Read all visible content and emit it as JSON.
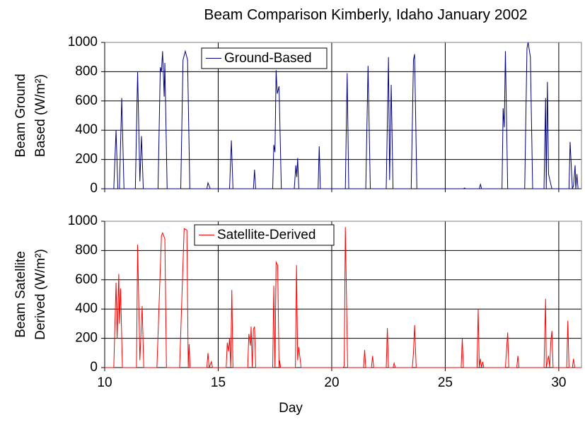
{
  "chart_data": [
    {
      "type": "line",
      "title": "Beam Comparison Kimberly, Idaho January 2002",
      "ylabel": [
        "Beam  Ground",
        "Based (W/m²)"
      ],
      "xlim": [
        10,
        31
      ],
      "xticks": [
        10,
        15,
        20,
        25,
        30
      ],
      "ylim": [
        0,
        1000
      ],
      "yticks": [
        0,
        200,
        400,
        600,
        800,
        1000
      ],
      "grid": true,
      "series": [
        {
          "name": "Ground-Based",
          "color": "#000080",
          "x": [
            10.0,
            10.4,
            10.5,
            10.58,
            10.65,
            10.75,
            10.85,
            11.35,
            11.45,
            11.55,
            11.62,
            11.7,
            12.35,
            12.45,
            12.5,
            12.55,
            12.62,
            12.65,
            12.75,
            13.35,
            13.45,
            13.55,
            13.65,
            13.75,
            14.5,
            14.55,
            14.65,
            15.5,
            15.58,
            15.65,
            16.55,
            16.6,
            16.65,
            17.4,
            17.45,
            17.5,
            17.55,
            17.6,
            17.68,
            17.78,
            18.35,
            18.42,
            18.46,
            18.5,
            18.55,
            19.4,
            19.45,
            19.5,
            20.6,
            20.68,
            20.75,
            21.5,
            21.6,
            21.7,
            22.4,
            22.5,
            22.55,
            22.62,
            22.7,
            23.5,
            23.6,
            23.65,
            23.75,
            25.8,
            25.85,
            25.9,
            26.5,
            26.55,
            26.6,
            27.5,
            27.55,
            27.6,
            27.65,
            27.75,
            28.5,
            28.6,
            28.65,
            28.75,
            28.85,
            29.35,
            29.42,
            29.45,
            29.5,
            29.55,
            29.65,
            29.7,
            30.45,
            30.5,
            30.6,
            30.65,
            30.72,
            30.75,
            30.8,
            30.85,
            31.0
          ],
          "values": [
            0,
            0,
            400,
            0,
            0,
            620,
            0,
            0,
            800,
            50,
            360,
            0,
            0,
            830,
            800,
            940,
            630,
            860,
            0,
            0,
            880,
            940,
            880,
            0,
            0,
            40,
            0,
            0,
            330,
            0,
            0,
            130,
            0,
            0,
            300,
            250,
            810,
            650,
            700,
            0,
            0,
            160,
            80,
            210,
            0,
            0,
            290,
            0,
            0,
            790,
            0,
            0,
            840,
            0,
            0,
            900,
            60,
            710,
            0,
            0,
            880,
            920,
            0,
            0,
            5,
            0,
            0,
            30,
            0,
            0,
            550,
            420,
            940,
            0,
            0,
            960,
            1000,
            900,
            0,
            0,
            620,
            0,
            730,
            100,
            30,
            0,
            0,
            320,
            0,
            20,
            160,
            0,
            100,
            0,
            0
          ]
        }
      ]
    },
    {
      "type": "line",
      "xlabel": "Day",
      "ylabel": [
        "Beam  Satellite",
        "Derived (W/m²)"
      ],
      "xlim": [
        10,
        31
      ],
      "xticks": [
        10,
        15,
        20,
        25,
        30
      ],
      "ylim": [
        0,
        1000
      ],
      "yticks": [
        0,
        200,
        400,
        600,
        800,
        1000
      ],
      "grid": true,
      "series": [
        {
          "name": "Satellite-Derived",
          "color": "#ff0000",
          "x": [
            10.0,
            10.4,
            10.5,
            10.55,
            10.62,
            10.65,
            10.7,
            10.78,
            11.4,
            11.45,
            11.55,
            11.65,
            11.72,
            12.3,
            12.5,
            12.55,
            12.65,
            12.72,
            13.3,
            13.5,
            13.62,
            13.68,
            13.72,
            13.76,
            14.5,
            14.55,
            14.6,
            14.7,
            14.75,
            15.35,
            15.4,
            15.45,
            15.5,
            15.55,
            15.6,
            15.65,
            16.3,
            16.35,
            16.42,
            16.45,
            16.5,
            16.55,
            16.6,
            16.65,
            17.4,
            17.45,
            17.5,
            17.55,
            17.62,
            17.68,
            17.7,
            17.75,
            18.4,
            18.45,
            18.5,
            18.55,
            18.65,
            20.5,
            20.55,
            20.6,
            20.7,
            21.4,
            21.45,
            21.5,
            21.75,
            21.8,
            21.85,
            22.4,
            22.45,
            22.5,
            22.7,
            22.75,
            22.8,
            23.55,
            23.6,
            23.65,
            23.72,
            25.7,
            25.75,
            25.8,
            26.4,
            26.45,
            26.5,
            26.55,
            26.6,
            26.65,
            26.7,
            27.65,
            27.75,
            27.8,
            28.15,
            28.2,
            28.25,
            29.35,
            29.42,
            29.45,
            29.55,
            29.6,
            29.65,
            29.7,
            29.75,
            30.35,
            30.4,
            30.45,
            30.6,
            30.65,
            30.7,
            31.0
          ],
          "values": [
            0,
            0,
            580,
            200,
            640,
            300,
            540,
            0,
            0,
            840,
            50,
            420,
            0,
            0,
            900,
            920,
            880,
            0,
            0,
            950,
            940,
            0,
            160,
            0,
            0,
            100,
            0,
            40,
            0,
            0,
            170,
            110,
            200,
            0,
            530,
            0,
            0,
            230,
            150,
            280,
            0,
            260,
            280,
            0,
            0,
            560,
            0,
            720,
            700,
            0,
            50,
            0,
            0,
            700,
            50,
            140,
            0,
            0,
            10,
            960,
            0,
            0,
            120,
            0,
            0,
            80,
            0,
            0,
            270,
            0,
            0,
            30,
            0,
            0,
            100,
            290,
            0,
            0,
            200,
            0,
            0,
            400,
            0,
            60,
            0,
            40,
            0,
            0,
            240,
            0,
            0,
            80,
            0,
            0,
            470,
            0,
            80,
            0,
            180,
            250,
            0,
            0,
            320,
            0,
            0,
            60,
            0,
            0
          ]
        }
      ]
    }
  ]
}
